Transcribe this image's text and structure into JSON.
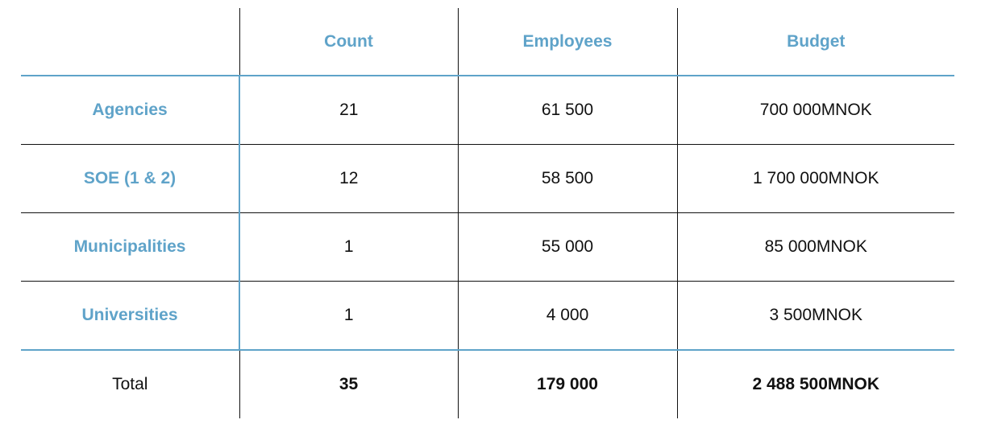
{
  "table": {
    "headers": [
      "",
      "Count",
      "Employees",
      "Budget"
    ],
    "rows": [
      {
        "label": "Agencies",
        "count": "21",
        "employees": "61 500",
        "budget": "700 000MNOK"
      },
      {
        "label": "SOE (1 & 2)",
        "count": "12",
        "employees": "58 500",
        "budget": "1 700 000MNOK"
      },
      {
        "label": "Municipalities",
        "count": "1",
        "employees": "55 000",
        "budget": "85 000MNOK"
      },
      {
        "label": "Universities",
        "count": "1",
        "employees": "4 000",
        "budget": "3 500MNOK"
      }
    ],
    "total": {
      "label": "Total",
      "count": "35",
      "employees": "179 000",
      "budget": "2 488 500MNOK"
    }
  },
  "colors": {
    "accent": "#5fa3c9",
    "text": "#111111",
    "rule": "#111111"
  }
}
